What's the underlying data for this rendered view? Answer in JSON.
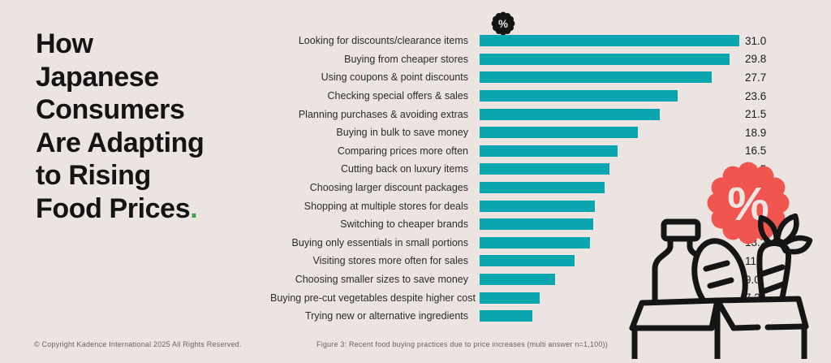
{
  "page": {
    "background_color": "#ebe4e0",
    "accent_teal": "#0aa6b0",
    "accent_red": "#f0554f",
    "accent_green": "#3aa44a",
    "ink_color": "#151515"
  },
  "title": {
    "lines": [
      "How",
      "Japanese",
      "Consumers",
      "Are Adapting",
      "to Rising",
      "Food Prices"
    ],
    "period": "."
  },
  "icons": {
    "top_badge": "percent-seal-icon",
    "red_badge": "percent-starburst-icon",
    "illustration": "grocery-box-illustration",
    "percent_symbol": "%"
  },
  "chart_data": {
    "type": "bar",
    "orientation": "horizontal",
    "title": "",
    "xlabel": "",
    "ylabel": "",
    "grid": false,
    "legend": null,
    "xlim": [
      0,
      31
    ],
    "bar_color": "#0aa6b0",
    "value_label_position": "end",
    "categories": [
      "Looking for discounts/clearance items",
      "Buying from cheaper stores",
      "Using coupons & point discounts",
      "Checking special offers & sales",
      "Planning purchases & avoiding extras",
      "Buying in bulk to save money",
      "Comparing prices more often",
      "Cutting back on luxury items",
      "Choosing larger discount packages",
      "Shopping at multiple stores for deals",
      "Switching to cheaper brands",
      "Buying only essentials in small portions",
      "Visiting stores more often for sales",
      "Choosing smaller sizes to save money",
      "Buying pre-cut vegetables despite higher cost",
      "Trying new or alternative ingredients"
    ],
    "values": [
      31.0,
      29.8,
      27.7,
      23.6,
      21.5,
      18.9,
      16.5,
      15.5,
      14.9,
      13.8,
      13.6,
      13.2,
      11.3,
      9.0,
      7.2,
      6.3
    ],
    "value_labels": [
      "31.0",
      "29.8",
      "27.7",
      "23.6",
      "21.5",
      "18.9",
      "16.5",
      "15.5",
      "14.9",
      "13.8",
      "13.6",
      "13.2",
      "11.3",
      "9.0",
      "7.2",
      "6.3"
    ]
  },
  "footer": {
    "copyright": "© Copyright Kadence International 2025 All Rights Reserved.",
    "figure_caption": "Figure 3: Recent food buying practices due to price increases (multi answer n=1,100))"
  }
}
